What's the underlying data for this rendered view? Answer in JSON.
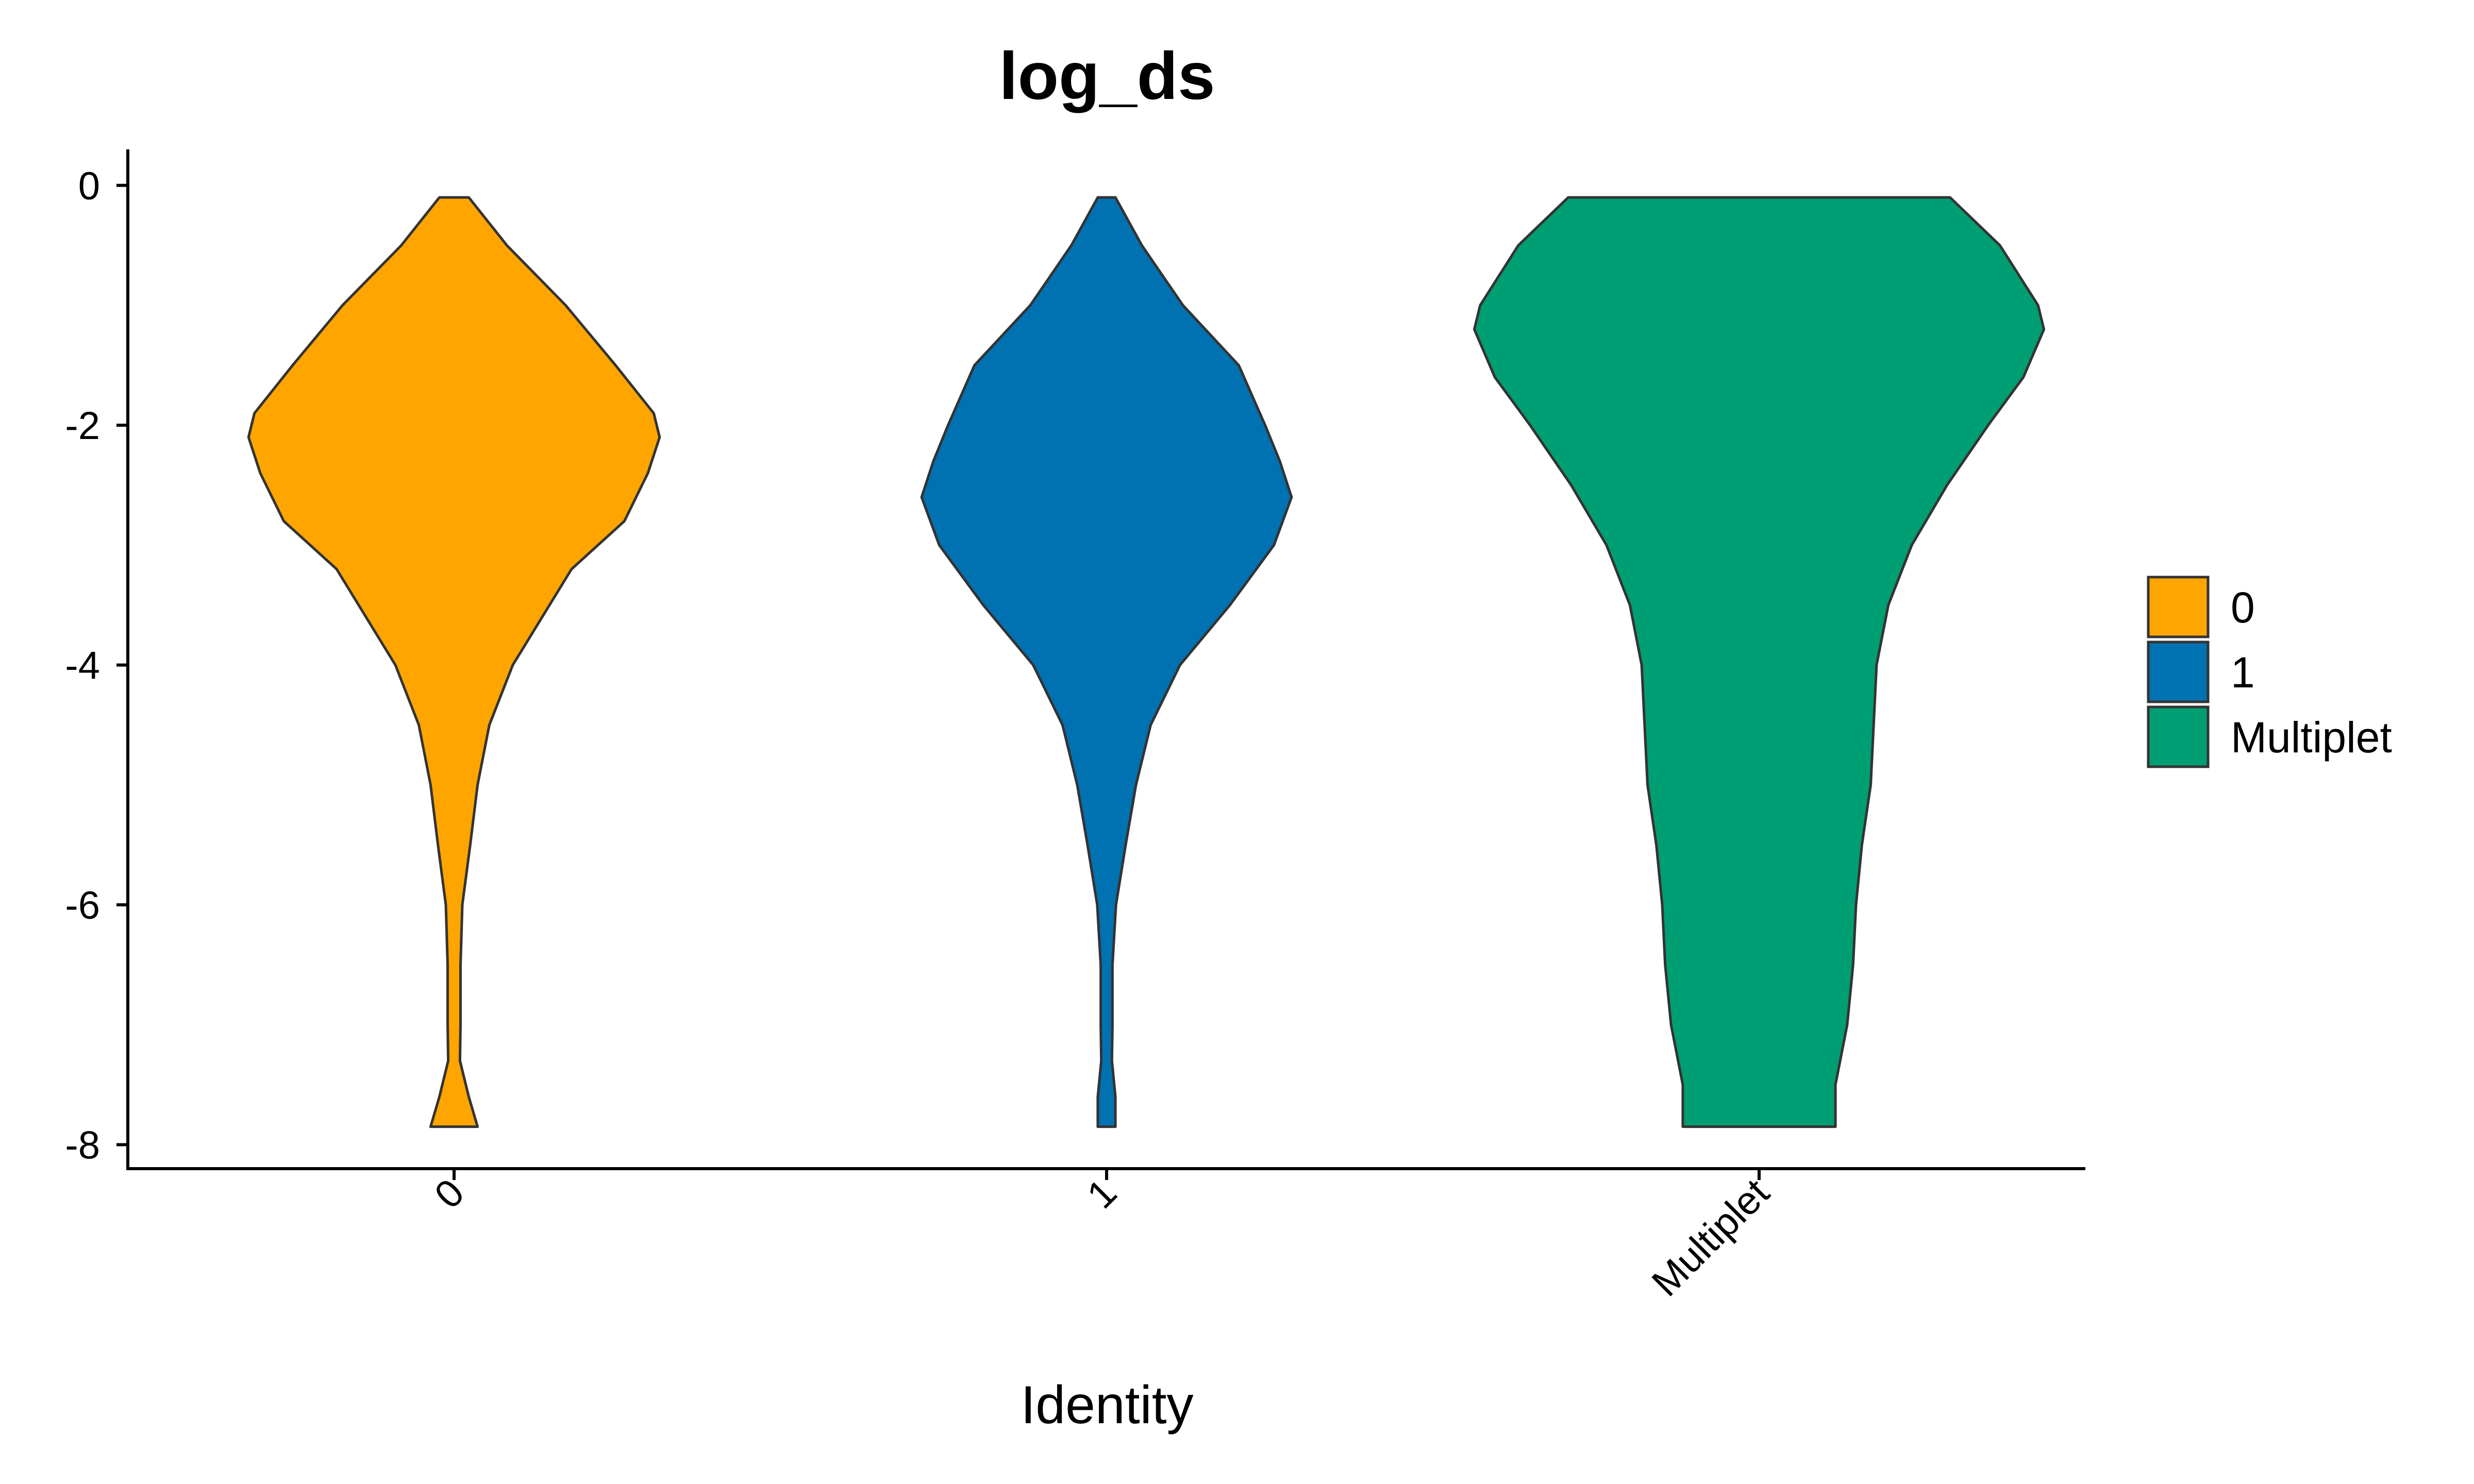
{
  "chart_data": {
    "type": "violin",
    "title": "log_ds",
    "xlabel": "Identity",
    "ylabel": "",
    "ylim": [
      -8.2,
      0.3
    ],
    "yticks": [
      0,
      -2,
      -4,
      -6,
      -8
    ],
    "ytick_labels": [
      "0",
      "-2",
      "-4",
      "-6",
      "-8"
    ],
    "categories": [
      "0",
      "1",
      "Multiplet"
    ],
    "grid": false,
    "legend": {
      "position": "right",
      "entries": [
        "0",
        "1",
        "Multiplet"
      ]
    },
    "series": [
      {
        "name": "0",
        "color": "#FFA500",
        "outline": "#333333",
        "y_range": [
          -7.85,
          -0.1
        ],
        "profile": [
          [
            -0.1,
            0.05
          ],
          [
            -0.5,
            0.18
          ],
          [
            -1.0,
            0.38
          ],
          [
            -1.5,
            0.55
          ],
          [
            -1.9,
            0.68
          ],
          [
            -2.1,
            0.7
          ],
          [
            -2.4,
            0.66
          ],
          [
            -2.8,
            0.58
          ],
          [
            -3.2,
            0.4
          ],
          [
            -3.6,
            0.3
          ],
          [
            -4.0,
            0.2
          ],
          [
            -4.5,
            0.12
          ],
          [
            -5.0,
            0.08
          ],
          [
            -5.5,
            0.055
          ],
          [
            -6.0,
            0.028
          ],
          [
            -6.5,
            0.022
          ],
          [
            -7.0,
            0.022
          ],
          [
            -7.3,
            0.02
          ],
          [
            -7.6,
            0.05
          ],
          [
            -7.85,
            0.08
          ]
        ]
      },
      {
        "name": "1",
        "color": "#0072B2",
        "outline": "#333333",
        "y_range": [
          -7.85,
          -0.1
        ],
        "profile": [
          [
            -0.1,
            0.03
          ],
          [
            -0.5,
            0.12
          ],
          [
            -1.0,
            0.26
          ],
          [
            -1.5,
            0.45
          ],
          [
            -2.0,
            0.54
          ],
          [
            -2.3,
            0.59
          ],
          [
            -2.6,
            0.63
          ],
          [
            -3.0,
            0.57
          ],
          [
            -3.5,
            0.42
          ],
          [
            -4.0,
            0.25
          ],
          [
            -4.5,
            0.15
          ],
          [
            -5.0,
            0.1
          ],
          [
            -5.5,
            0.065
          ],
          [
            -6.0,
            0.032
          ],
          [
            -6.5,
            0.02
          ],
          [
            -7.0,
            0.02
          ],
          [
            -7.3,
            0.018
          ],
          [
            -7.6,
            0.03
          ],
          [
            -7.85,
            0.03
          ]
        ]
      },
      {
        "name": "Multiplet",
        "color": "#009E73",
        "outline": "#333333",
        "y_range": [
          -7.85,
          -0.1
        ],
        "profile": [
          [
            -0.1,
            0.65
          ],
          [
            -0.5,
            0.82
          ],
          [
            -1.0,
            0.95
          ],
          [
            -1.2,
            0.97
          ],
          [
            -1.6,
            0.9
          ],
          [
            -2.0,
            0.78
          ],
          [
            -2.5,
            0.64
          ],
          [
            -3.0,
            0.52
          ],
          [
            -3.5,
            0.44
          ],
          [
            -4.0,
            0.4
          ],
          [
            -4.5,
            0.39
          ],
          [
            -5.0,
            0.38
          ],
          [
            -5.5,
            0.35
          ],
          [
            -6.0,
            0.33
          ],
          [
            -6.5,
            0.32
          ],
          [
            -7.0,
            0.3
          ],
          [
            -7.5,
            0.26
          ],
          [
            -7.85,
            0.26
          ]
        ]
      }
    ]
  }
}
